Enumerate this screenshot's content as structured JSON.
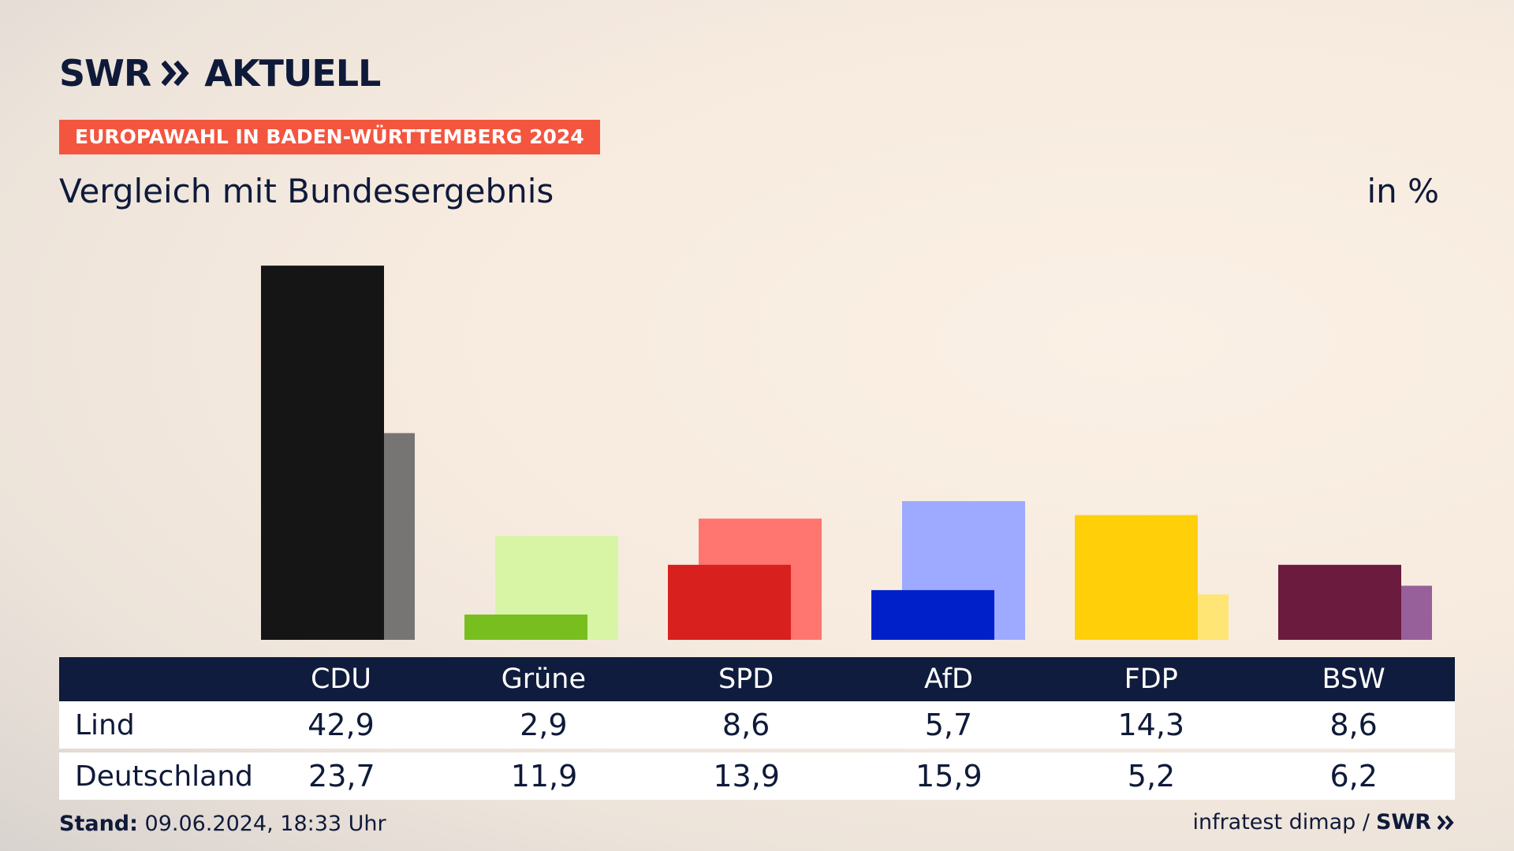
{
  "brand": {
    "logo_text": "SWR",
    "logo_suffix": "AKTUELL",
    "badge": "EUROPAWAHL IN BADEN-WÜRTTEMBERG 2024"
  },
  "header": {
    "subtitle": "Vergleich mit Bundesergebnis",
    "unit": "in %"
  },
  "chart_data": {
    "type": "bar",
    "categories": [
      "CDU",
      "Grüne",
      "SPD",
      "AfD",
      "FDP",
      "BSW"
    ],
    "series": [
      {
        "name": "Lind",
        "values": [
          42.9,
          2.9,
          8.6,
          5.7,
          14.3,
          8.6
        ]
      },
      {
        "name": "Deutschland",
        "values": [
          23.7,
          11.9,
          13.9,
          15.9,
          5.2,
          6.2
        ]
      }
    ],
    "colors_primary": [
      "#151515",
      "#78be1f",
      "#d8201e",
      "#0021c9",
      "#ffcf0a",
      "#6b1b3d"
    ],
    "colors_secondary": [
      "#777574",
      "#d8f5a6",
      "#ff7570",
      "#9daaff",
      "#ffe574",
      "#98609a"
    ],
    "ylim": [
      0,
      43
    ]
  },
  "table": {
    "row_labels": [
      "Lind",
      "Deutschland"
    ]
  },
  "footer": {
    "stand_label": "Stand:",
    "stand_value": "09.06.2024, 18:33 Uhr",
    "source": "infratest dimap /",
    "source_brand": "SWR"
  }
}
